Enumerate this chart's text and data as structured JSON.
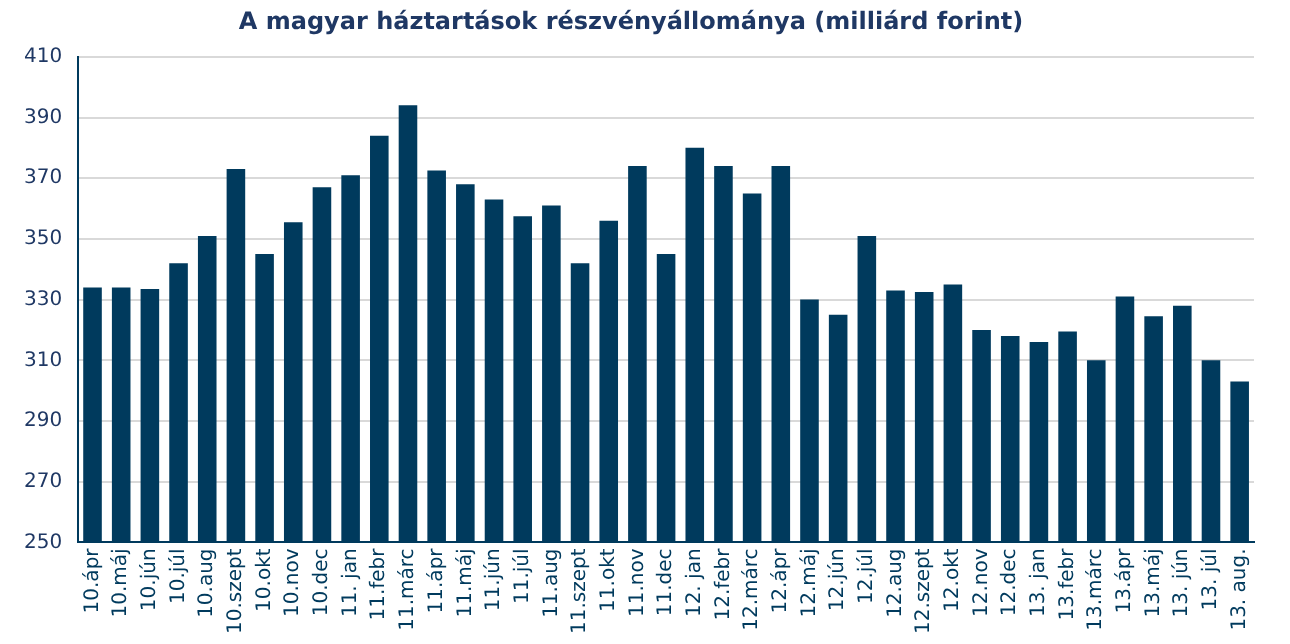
{
  "chart_data": {
    "type": "bar",
    "title": "A magyar háztartások részvényállománya (milliárd forint)",
    "categories": [
      "10.ápr",
      "10.máj",
      "10.jún",
      "10.júl",
      "10.aug",
      "10.szept",
      "10.okt",
      "10.nov",
      "10.dec",
      "11. jan",
      "11.febr",
      "11.márc",
      "11.ápr",
      "11.máj",
      "11.jún",
      "11.júl",
      "11.aug",
      "11.szept",
      "11.okt",
      "11.nov",
      "11.dec",
      "12. jan",
      "12.febr",
      "12.márc",
      "12.ápr",
      "12.máj",
      "12.jún",
      "12.júl",
      "12.aug",
      "12.szept",
      "12.okt",
      "12.nov",
      "12.dec",
      "13. jan",
      "13.febr",
      "13.márc",
      "13.ápr",
      "13.máj",
      "13. jún",
      "13. júl",
      "13. aug."
    ],
    "values": [
      334,
      334,
      333.5,
      342,
      351,
      373,
      345,
      355.5,
      367,
      371,
      384,
      394,
      372.5,
      368,
      363,
      357.5,
      361,
      342,
      356,
      374,
      345,
      380,
      374,
      365,
      374,
      330,
      325,
      351,
      333,
      332.5,
      335,
      320,
      318,
      316,
      319.5,
      310,
      331,
      324.5,
      328,
      310,
      303
    ],
    "color": "#003a5d",
    "ylim": [
      250,
      410
    ],
    "yticks": [
      250,
      270,
      290,
      310,
      330,
      350,
      370,
      390,
      410
    ],
    "grid": "y"
  }
}
